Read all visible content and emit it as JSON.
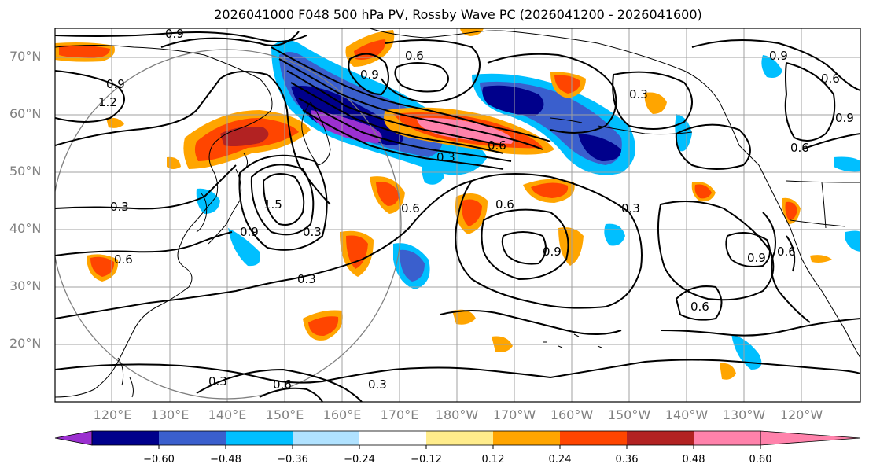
{
  "title": "2026041000 F048 500 hPa PV, Rossby Wave PC (2026041200 - 2026041600)",
  "latitude_labels": [
    "70°N",
    "60°N",
    "50°N",
    "40°N",
    "30°N",
    "20°N"
  ],
  "longitude_labels": [
    "120°E",
    "130°E",
    "140°E",
    "150°E",
    "160°E",
    "170°E",
    "180°W",
    "170°W",
    "160°W",
    "150°W",
    "140°W",
    "130°W",
    "120°W"
  ],
  "colorbar": {
    "tick_labels": [
      "−0.60",
      "−0.48",
      "−0.36",
      "−0.24",
      "−0.12",
      "0.12",
      "0.24",
      "0.36",
      "0.48",
      "0.60"
    ],
    "colors": [
      "#9b30d0",
      "#00008b",
      "#3a5fcd",
      "#00bfff",
      "#b0e2ff",
      "#ffffff",
      "#ffec8b",
      "#ffa500",
      "#ff4500",
      "#b22222",
      "#ff82ab"
    ]
  },
  "contour_labels": [
    "0.9",
    "0.6",
    "0.9",
    "0.3",
    "0.6",
    "0.3",
    "0.3",
    "0.6",
    "0.9",
    "0.3",
    "0.6",
    "0.3",
    "0.9",
    "0.6",
    "1.2",
    "0.9",
    "0.6",
    "0.3",
    "0.3",
    "0.6",
    "0.9",
    "0.9",
    "0.6",
    "0.3",
    "0.6",
    "1.5",
    "0.9",
    "0.6"
  ],
  "colors": {
    "coast": "#000000",
    "grid": "#a0a0a0",
    "contour": "#000000",
    "circle": "#808080"
  }
}
